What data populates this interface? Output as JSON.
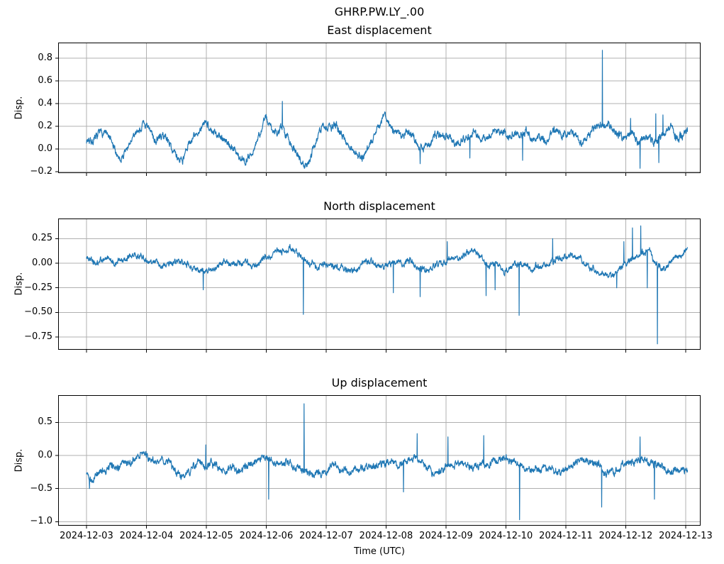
{
  "figure": {
    "suptitle": "GHRP.PW.LY_.00",
    "background": "#ffffff",
    "line_color": "#1f77b4",
    "grid_color": "#b0b0b0",
    "spine_color": "#000000",
    "x_axis": {
      "label": "Time (UTC)",
      "tick_labels": [
        "2024-12-03",
        "2024-12-04",
        "2024-12-05",
        "2024-12-06",
        "2024-12-07",
        "2024-12-08",
        "2024-12-09",
        "2024-12-10",
        "2024-12-11",
        "2024-12-12",
        "2024-12-13"
      ],
      "lim_days": [
        -0.473,
        10.249
      ]
    }
  },
  "chart_data": [
    {
      "type": "line",
      "title": "East displacement",
      "ylabel": "Disp.",
      "legend": null,
      "grid": true,
      "x_unit": "days since 2024-12-03 00:00 (UTC)",
      "ylim": [
        -0.2125,
        0.9375
      ],
      "yticks": [
        {
          "v": -0.2,
          "label": "−0.2"
        },
        {
          "v": 0.0,
          "label": "0.0"
        },
        {
          "v": 0.2,
          "label": "0.2"
        },
        {
          "v": 0.4,
          "label": "0.4"
        },
        {
          "v": 0.6,
          "label": "0.6"
        },
        {
          "v": 0.8,
          "label": "0.8"
        }
      ],
      "baseline_keypoints": [
        [
          0.0,
          0.08
        ],
        [
          0.15,
          0.1
        ],
        [
          0.3,
          0.16
        ],
        [
          0.42,
          0.05
        ],
        [
          0.5,
          -0.07
        ],
        [
          0.58,
          -0.1
        ],
        [
          0.7,
          0.02
        ],
        [
          0.82,
          0.12
        ],
        [
          0.96,
          0.24
        ],
        [
          1.05,
          0.15
        ],
        [
          1.15,
          0.08
        ],
        [
          1.3,
          0.12
        ],
        [
          1.42,
          0.02
        ],
        [
          1.52,
          -0.09
        ],
        [
          1.62,
          -0.05
        ],
        [
          1.75,
          0.08
        ],
        [
          1.9,
          0.15
        ],
        [
          2.02,
          0.24
        ],
        [
          2.12,
          0.12
        ],
        [
          2.25,
          0.14
        ],
        [
          2.4,
          0.04
        ],
        [
          2.55,
          -0.06
        ],
        [
          2.65,
          -0.1
        ],
        [
          2.78,
          0.0
        ],
        [
          2.9,
          0.15
        ],
        [
          2.98,
          0.27
        ],
        [
          3.1,
          0.18
        ],
        [
          3.27,
          0.2
        ],
        [
          3.4,
          0.06
        ],
        [
          3.55,
          -0.05
        ],
        [
          3.68,
          -0.12
        ],
        [
          3.8,
          0.05
        ],
        [
          3.92,
          0.18
        ],
        [
          4.05,
          0.22
        ],
        [
          4.18,
          0.18
        ],
        [
          4.3,
          0.1
        ],
        [
          4.45,
          0.0
        ],
        [
          4.6,
          -0.06
        ],
        [
          4.72,
          0.05
        ],
        [
          4.85,
          0.2
        ],
        [
          4.98,
          0.32
        ],
        [
          5.1,
          0.18
        ],
        [
          5.25,
          0.1
        ],
        [
          5.4,
          0.14
        ],
        [
          5.55,
          0.02
        ],
        [
          5.7,
          0.05
        ],
        [
          5.85,
          0.12
        ],
        [
          6.0,
          0.16
        ],
        [
          6.15,
          0.06
        ],
        [
          6.3,
          0.12
        ],
        [
          6.45,
          0.16
        ],
        [
          6.6,
          0.05
        ],
        [
          6.75,
          0.1
        ],
        [
          6.9,
          0.18
        ],
        [
          7.05,
          0.1
        ],
        [
          7.2,
          0.14
        ],
        [
          7.35,
          0.16
        ],
        [
          7.5,
          0.05
        ],
        [
          7.65,
          0.1
        ],
        [
          7.8,
          0.16
        ],
        [
          7.95,
          0.12
        ],
        [
          8.1,
          0.16
        ],
        [
          8.25,
          0.08
        ],
        [
          8.4,
          0.14
        ],
        [
          8.55,
          0.2
        ],
        [
          8.7,
          0.24
        ],
        [
          8.85,
          0.16
        ],
        [
          9.0,
          0.1
        ],
        [
          9.1,
          0.16
        ],
        [
          9.22,
          0.08
        ],
        [
          9.35,
          0.12
        ],
        [
          9.5,
          0.05
        ],
        [
          9.62,
          0.1
        ],
        [
          9.75,
          0.18
        ],
        [
          9.85,
          0.1
        ],
        [
          10.03,
          0.15
        ]
      ],
      "spikes": [
        [
          3.27,
          0.42
        ],
        [
          5.57,
          -0.13
        ],
        [
          6.4,
          -0.08
        ],
        [
          7.28,
          -0.1
        ],
        [
          8.61,
          0.87
        ],
        [
          9.08,
          0.27
        ],
        [
          9.24,
          -0.17
        ],
        [
          9.5,
          0.31
        ],
        [
          9.55,
          -0.12
        ],
        [
          9.62,
          0.3
        ]
      ],
      "noise": {
        "seed": 7,
        "slow_amp": 0.01,
        "fast_amp": 0.022
      },
      "samples": 2600
    },
    {
      "type": "line",
      "title": "North displacement",
      "ylabel": "Disp.",
      "legend": null,
      "grid": true,
      "x_unit": "days since 2024-12-03 00:00 (UTC)",
      "ylim": [
        -0.88,
        0.455
      ],
      "yticks": [
        {
          "v": -0.75,
          "label": "−0.75"
        },
        {
          "v": -0.5,
          "label": "−0.50"
        },
        {
          "v": -0.25,
          "label": "−0.25"
        },
        {
          "v": 0.0,
          "label": "0.00"
        },
        {
          "v": 0.25,
          "label": "0.25"
        }
      ],
      "baseline_keypoints": [
        [
          0.0,
          0.06
        ],
        [
          0.15,
          0.03
        ],
        [
          0.3,
          0.02
        ],
        [
          0.45,
          0.0
        ],
        [
          0.6,
          0.05
        ],
        [
          0.72,
          0.1
        ],
        [
          0.85,
          0.08
        ],
        [
          1.0,
          0.04
        ],
        [
          1.15,
          0.0
        ],
        [
          1.3,
          -0.03
        ],
        [
          1.45,
          0.0
        ],
        [
          1.6,
          -0.02
        ],
        [
          1.75,
          -0.06
        ],
        [
          1.9,
          -0.11
        ],
        [
          2.05,
          -0.08
        ],
        [
          2.2,
          -0.02
        ],
        [
          2.35,
          0.0
        ],
        [
          2.5,
          -0.03
        ],
        [
          2.65,
          0.0
        ],
        [
          2.8,
          -0.02
        ],
        [
          2.95,
          0.05
        ],
        [
          3.1,
          0.09
        ],
        [
          3.25,
          0.12
        ],
        [
          3.4,
          0.14
        ],
        [
          3.55,
          0.06
        ],
        [
          3.7,
          0.0
        ],
        [
          3.85,
          -0.04
        ],
        [
          4.0,
          -0.02
        ],
        [
          4.15,
          -0.04
        ],
        [
          4.3,
          -0.09
        ],
        [
          4.45,
          -0.06
        ],
        [
          4.6,
          -0.02
        ],
        [
          4.75,
          0.0
        ],
        [
          4.9,
          -0.02
        ],
        [
          5.05,
          -0.04
        ],
        [
          5.2,
          -0.02
        ],
        [
          5.35,
          0.0
        ],
        [
          5.5,
          -0.05
        ],
        [
          5.65,
          -0.08
        ],
        [
          5.8,
          -0.03
        ],
        [
          5.95,
          0.0
        ],
        [
          6.1,
          0.04
        ],
        [
          6.25,
          0.09
        ],
        [
          6.4,
          0.12
        ],
        [
          6.55,
          0.08
        ],
        [
          6.7,
          0.02
        ],
        [
          6.85,
          -0.04
        ],
        [
          7.0,
          -0.07
        ],
        [
          7.15,
          -0.02
        ],
        [
          7.3,
          0.0
        ],
        [
          7.45,
          -0.05
        ],
        [
          7.6,
          -0.01
        ],
        [
          7.75,
          0.02
        ],
        [
          7.9,
          0.06
        ],
        [
          8.05,
          0.1
        ],
        [
          8.2,
          0.09
        ],
        [
          8.35,
          0.03
        ],
        [
          8.5,
          -0.05
        ],
        [
          8.65,
          -0.09
        ],
        [
          8.8,
          -0.07
        ],
        [
          8.95,
          0.0
        ],
        [
          9.1,
          0.04
        ],
        [
          9.25,
          0.06
        ],
        [
          9.4,
          0.1
        ],
        [
          9.52,
          -0.02
        ],
        [
          9.65,
          -0.08
        ],
        [
          9.8,
          0.03
        ],
        [
          9.92,
          0.08
        ],
        [
          10.03,
          0.09
        ]
      ],
      "spikes": [
        [
          1.95,
          -0.27
        ],
        [
          3.62,
          -0.52
        ],
        [
          5.12,
          -0.3
        ],
        [
          5.57,
          -0.34
        ],
        [
          6.02,
          0.22
        ],
        [
          6.67,
          -0.33
        ],
        [
          6.82,
          -0.27
        ],
        [
          7.22,
          -0.53
        ],
        [
          7.78,
          0.25
        ],
        [
          8.85,
          -0.25
        ],
        [
          8.97,
          0.22
        ],
        [
          9.11,
          0.36
        ],
        [
          9.25,
          0.38
        ],
        [
          9.36,
          -0.25
        ],
        [
          9.53,
          -0.82
        ]
      ],
      "noise": {
        "seed": 21,
        "slow_amp": 0.01,
        "fast_amp": 0.02
      },
      "samples": 2600
    },
    {
      "type": "line",
      "title": "Up displacement",
      "ylabel": "Disp.",
      "legend": null,
      "grid": true,
      "x_unit": "days since 2024-12-03 00:00 (UTC)",
      "ylim": [
        -1.06,
        0.91
      ],
      "yticks": [
        {
          "v": -1.0,
          "label": "−1.0"
        },
        {
          "v": -0.5,
          "label": "−0.5"
        },
        {
          "v": 0.0,
          "label": "0.0"
        },
        {
          "v": 0.5,
          "label": "0.5"
        }
      ],
      "baseline_keypoints": [
        [
          0.0,
          -0.28
        ],
        [
          0.1,
          -0.35
        ],
        [
          0.25,
          -0.22
        ],
        [
          0.4,
          -0.18
        ],
        [
          0.55,
          -0.14
        ],
        [
          0.7,
          -0.1
        ],
        [
          0.85,
          -0.02
        ],
        [
          0.95,
          0.05
        ],
        [
          1.05,
          -0.08
        ],
        [
          1.2,
          -0.15
        ],
        [
          1.35,
          -0.12
        ],
        [
          1.5,
          -0.22
        ],
        [
          1.62,
          -0.3
        ],
        [
          1.75,
          -0.18
        ],
        [
          1.88,
          -0.12
        ],
        [
          2.0,
          -0.2
        ],
        [
          2.15,
          -0.16
        ],
        [
          2.3,
          -0.22
        ],
        [
          2.45,
          -0.18
        ],
        [
          2.6,
          -0.2
        ],
        [
          2.75,
          -0.12
        ],
        [
          2.88,
          -0.05
        ],
        [
          3.0,
          0.02
        ],
        [
          3.12,
          -0.08
        ],
        [
          3.25,
          -0.15
        ],
        [
          3.4,
          -0.12
        ],
        [
          3.55,
          -0.16
        ],
        [
          3.7,
          -0.22
        ],
        [
          3.85,
          -0.3
        ],
        [
          4.0,
          -0.22
        ],
        [
          4.15,
          -0.16
        ],
        [
          4.3,
          -0.25
        ],
        [
          4.45,
          -0.2
        ],
        [
          4.6,
          -0.14
        ],
        [
          4.75,
          -0.18
        ],
        [
          4.9,
          -0.12
        ],
        [
          5.05,
          -0.08
        ],
        [
          5.2,
          -0.16
        ],
        [
          5.35,
          -0.12
        ],
        [
          5.5,
          -0.08
        ],
        [
          5.65,
          -0.18
        ],
        [
          5.8,
          -0.25
        ],
        [
          5.95,
          -0.2
        ],
        [
          6.1,
          -0.12
        ],
        [
          6.25,
          -0.1
        ],
        [
          6.4,
          -0.18
        ],
        [
          6.55,
          -0.14
        ],
        [
          6.7,
          -0.1
        ],
        [
          6.85,
          -0.08
        ],
        [
          7.0,
          -0.06
        ],
        [
          7.15,
          -0.1
        ],
        [
          7.3,
          -0.14
        ],
        [
          7.45,
          -0.22
        ],
        [
          7.6,
          -0.18
        ],
        [
          7.75,
          -0.22
        ],
        [
          7.9,
          -0.3
        ],
        [
          8.05,
          -0.22
        ],
        [
          8.2,
          -0.12
        ],
        [
          8.35,
          -0.08
        ],
        [
          8.5,
          -0.16
        ],
        [
          8.65,
          -0.28
        ],
        [
          8.8,
          -0.22
        ],
        [
          8.95,
          -0.12
        ],
        [
          9.1,
          -0.06
        ],
        [
          9.25,
          -0.12
        ],
        [
          9.4,
          -0.18
        ],
        [
          9.55,
          -0.12
        ],
        [
          9.7,
          -0.22
        ],
        [
          9.85,
          -0.28
        ],
        [
          10.03,
          -0.25
        ]
      ],
      "spikes": [
        [
          0.05,
          -0.5
        ],
        [
          1.99,
          0.16
        ],
        [
          3.04,
          -0.66
        ],
        [
          3.63,
          0.78
        ],
        [
          5.29,
          -0.55
        ],
        [
          5.52,
          0.33
        ],
        [
          6.03,
          0.28
        ],
        [
          6.63,
          0.3
        ],
        [
          7.23,
          -0.97
        ],
        [
          8.6,
          -0.78
        ],
        [
          9.24,
          0.28
        ],
        [
          9.48,
          -0.66
        ]
      ],
      "noise": {
        "seed": 42,
        "slow_amp": 0.014,
        "fast_amp": 0.036
      },
      "samples": 2600
    }
  ]
}
